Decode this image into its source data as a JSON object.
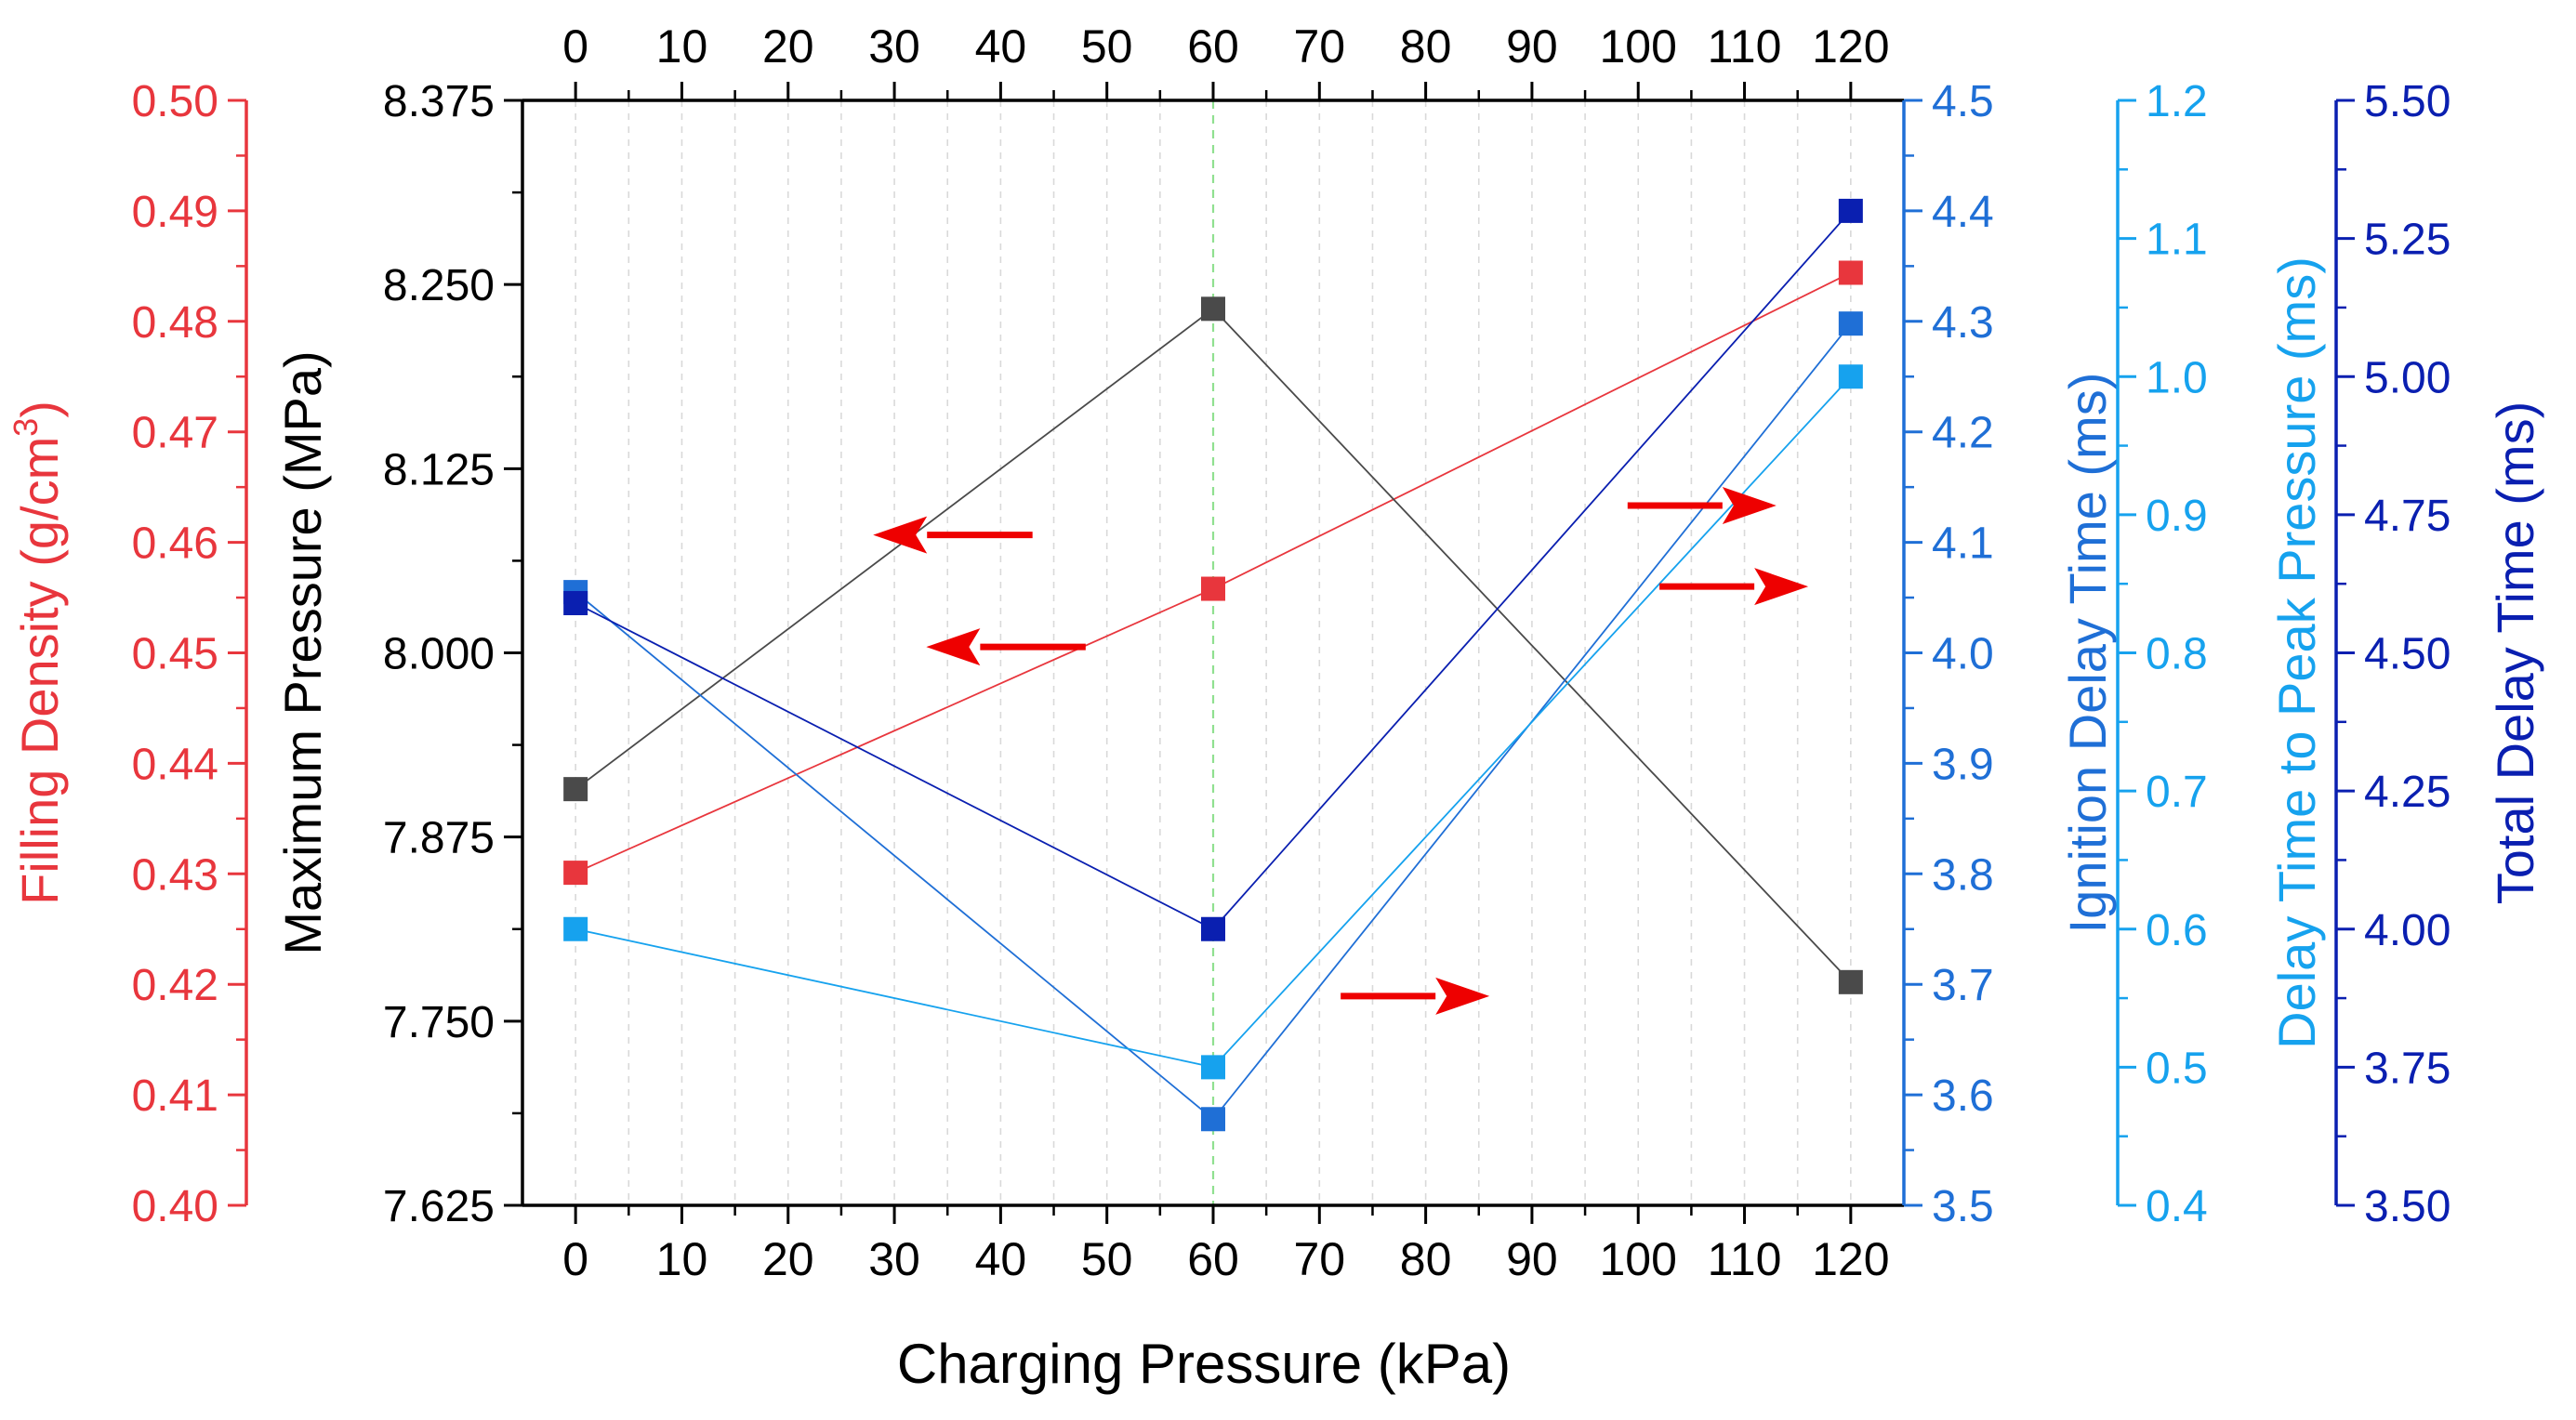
{
  "chart_data": {
    "type": "scatter",
    "x": [
      0,
      60,
      120
    ],
    "xlabel": "Charging Pressure (kPa)",
    "xlim": [
      -5,
      125
    ],
    "xticks": [
      0,
      10,
      20,
      30,
      40,
      50,
      60,
      70,
      80,
      90,
      100,
      110,
      120
    ],
    "xtick_labels": [
      "0",
      "10",
      "20",
      "30",
      "40",
      "50",
      "60",
      "70",
      "80",
      "90",
      "100",
      "110",
      "120"
    ],
    "top_xticks": [
      0,
      10,
      20,
      30,
      40,
      50,
      60,
      70,
      80,
      90,
      100,
      110,
      120
    ],
    "top_xtick_labels": [
      "0",
      "10",
      "20",
      "30",
      "40",
      "50",
      "60",
      "70",
      "80",
      "90",
      "100",
      "110",
      "120"
    ],
    "grid": "vertical dashed",
    "reference_line": {
      "x": 60,
      "color": "#90e090"
    },
    "axes": [
      {
        "id": "fd",
        "label": "Filling Density (g/cm",
        "label_sup": "3",
        "label_end": ")",
        "side": "left-outer",
        "color": "#e8363d",
        "ylim": [
          0.4,
          0.5
        ],
        "ticks": [
          0.4,
          0.41,
          0.42,
          0.43,
          0.44,
          0.45,
          0.46,
          0.47,
          0.48,
          0.49,
          0.5
        ],
        "tick_labels": [
          "0.40",
          "0.41",
          "0.42",
          "0.43",
          "0.44",
          "0.45",
          "0.46",
          "0.47",
          "0.48",
          "0.49",
          "0.50"
        ]
      },
      {
        "id": "mp",
        "label": "Maximum Pressure (MPa)",
        "side": "left-inner",
        "color": "#000000",
        "ylim": [
          7.625,
          8.375
        ],
        "ticks": [
          7.625,
          7.75,
          7.875,
          8.0,
          8.125,
          8.25,
          8.375
        ],
        "tick_labels": [
          "7.625",
          "7.750",
          "7.875",
          "8.000",
          "8.125",
          "8.250",
          "8.375"
        ]
      },
      {
        "id": "idt",
        "label": "Ignition Delay Time (ms)",
        "side": "right-1",
        "color": "#1f6fd6",
        "ylim": [
          3.5,
          4.5
        ],
        "ticks": [
          3.5,
          3.6,
          3.7,
          3.8,
          3.9,
          4.0,
          4.1,
          4.2,
          4.3,
          4.4,
          4.5
        ],
        "tick_labels": [
          "3.5",
          "3.6",
          "3.7",
          "3.8",
          "3.9",
          "4.0",
          "4.1",
          "4.2",
          "4.3",
          "4.4",
          "4.5"
        ]
      },
      {
        "id": "dtp",
        "label": "Delay Time to Peak Pressure (ms)",
        "side": "right-2",
        "color": "#16a2ee",
        "ylim": [
          0.4,
          1.2
        ],
        "ticks": [
          0.4,
          0.5,
          0.6,
          0.7,
          0.8,
          0.9,
          1.0,
          1.1,
          1.2
        ],
        "tick_labels": [
          "0.4",
          "0.5",
          "0.6",
          "0.7",
          "0.8",
          "0.9",
          "1.0",
          "1.1",
          "1.2"
        ]
      },
      {
        "id": "tdt",
        "label": "Total Delay Time (ms)",
        "side": "right-3",
        "color": "#0a1fb0",
        "ylim": [
          3.5,
          5.5
        ],
        "ticks": [
          3.5,
          3.75,
          4.0,
          4.25,
          4.5,
          4.75,
          5.0,
          5.25,
          5.5
        ],
        "tick_labels": [
          "3.50",
          "3.75",
          "4.00",
          "4.25",
          "4.50",
          "4.75",
          "5.00",
          "5.25",
          "5.50"
        ]
      }
    ],
    "series": [
      {
        "name": "Filling Density",
        "axis": "fd",
        "color": "#e8363d",
        "values": [
          0.4301,
          0.4558,
          0.4844
        ]
      },
      {
        "name": "Maximum Pressure",
        "axis": "mp",
        "color": "#4a4a4a",
        "values": [
          7.9075,
          8.2335,
          7.7765
        ]
      },
      {
        "name": "Ignition Delay Time",
        "axis": "idt",
        "color": "#1f6fd6",
        "values": [
          4.055,
          3.578,
          4.298
        ]
      },
      {
        "name": "Delay Time to Peak Pressure",
        "axis": "dtp",
        "color": "#16a2ee",
        "values": [
          0.6,
          0.5,
          1.0
        ]
      },
      {
        "name": "Total Delay Time",
        "axis": "tdt",
        "color": "#0a1fb0",
        "values": [
          4.59,
          4.0,
          5.3
        ]
      }
    ],
    "annotations": [
      {
        "type": "arrow",
        "direction": "left",
        "color": "#ee0000",
        "x_from": 43,
        "x_to": 28,
        "axis": "mp",
        "y": 8.08
      },
      {
        "type": "arrow",
        "direction": "left",
        "color": "#ee0000",
        "x_from": 48,
        "x_to": 33,
        "axis": "mp",
        "y": 8.004
      },
      {
        "type": "arrow",
        "direction": "right",
        "color": "#ee0000",
        "x_from": 99,
        "x_to": 113,
        "axis": "mp",
        "y": 8.1
      },
      {
        "type": "arrow",
        "direction": "right",
        "color": "#ee0000",
        "x_from": 102,
        "x_to": 116,
        "axis": "mp",
        "y": 8.045
      },
      {
        "type": "arrow",
        "direction": "right",
        "color": "#ee0000",
        "x_from": 72,
        "x_to": 86,
        "axis": "mp",
        "y": 7.767
      }
    ]
  }
}
